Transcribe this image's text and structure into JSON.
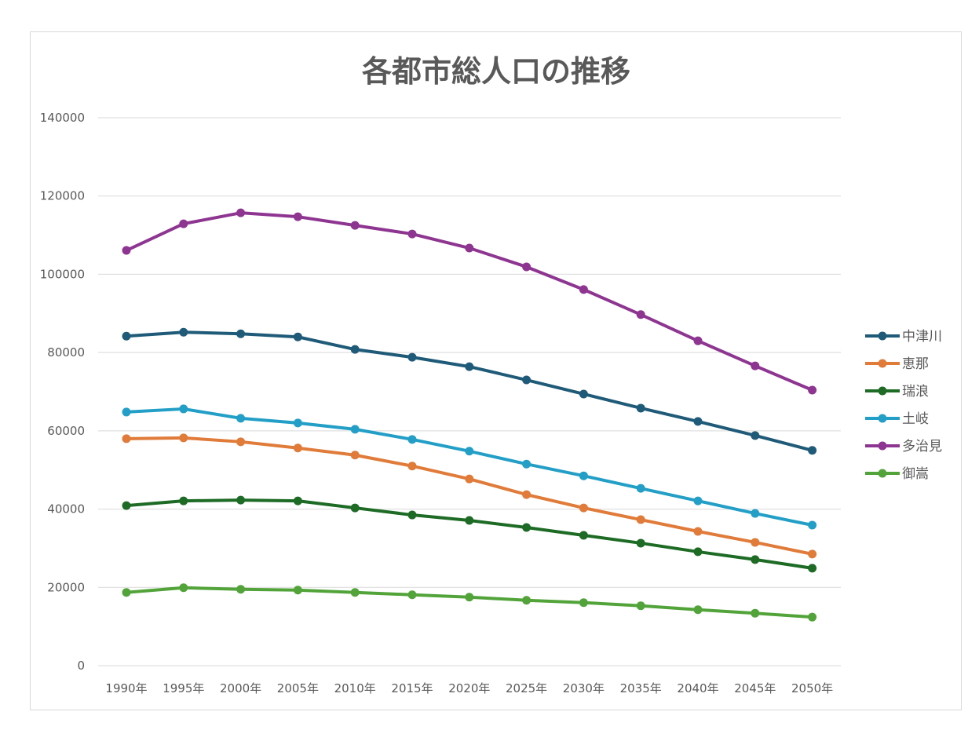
{
  "chart_data": {
    "type": "line",
    "title": "各都市総人口の推移",
    "xlabel": "",
    "ylabel": "",
    "ylim": [
      0,
      140000
    ],
    "yticks": [
      "0",
      "20000",
      "40000",
      "60000",
      "80000",
      "100000",
      "120000",
      "140000"
    ],
    "grid": true,
    "legend_position": "right",
    "categories": [
      "1990年",
      "1995年",
      "2000年",
      "2005年",
      "2010年",
      "2015年",
      "2020年",
      "2025年",
      "2030年",
      "2035年",
      "2040年",
      "2045年",
      "2050年"
    ],
    "series": [
      {
        "name": "中津川",
        "color": "#1f5b78",
        "values": [
          84200,
          85200,
          84800,
          84000,
          80800,
          78800,
          76400,
          73000,
          69400,
          65800,
          62400,
          58800,
          55000
        ]
      },
      {
        "name": "恵那",
        "color": "#e07b39",
        "values": [
          58000,
          58200,
          57200,
          55600,
          53800,
          51000,
          47700,
          43700,
          40300,
          37300,
          34300,
          31500,
          28500
        ]
      },
      {
        "name": "瑞浪",
        "color": "#1d6b25",
        "values": [
          40900,
          42100,
          42300,
          42100,
          40300,
          38500,
          37100,
          35300,
          33300,
          31300,
          29100,
          27100,
          24900
        ]
      },
      {
        "name": "土岐",
        "color": "#239fc7",
        "values": [
          64800,
          65600,
          63200,
          62000,
          60400,
          57800,
          54800,
          51500,
          48500,
          45300,
          42100,
          38900,
          35900
        ]
      },
      {
        "name": "多治見",
        "color": "#8e3591",
        "values": [
          106100,
          112900,
          115700,
          114700,
          112500,
          110300,
          106700,
          101900,
          96100,
          89700,
          83000,
          76600,
          70400
        ]
      },
      {
        "name": "御嵩",
        "color": "#52a43a",
        "values": [
          18700,
          19900,
          19500,
          19300,
          18700,
          18100,
          17500,
          16700,
          16100,
          15300,
          14300,
          13400,
          12400
        ]
      }
    ]
  }
}
